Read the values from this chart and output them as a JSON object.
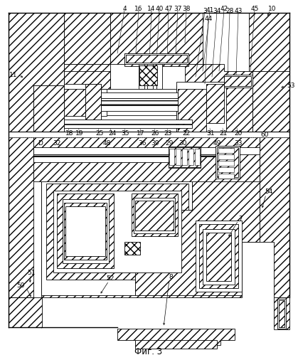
{
  "title": "Фиг. 3",
  "background_color": "#ffffff",
  "line_color": "#000000",
  "fig_width": 4.19,
  "fig_height": 4.99,
  "dpi": 100
}
